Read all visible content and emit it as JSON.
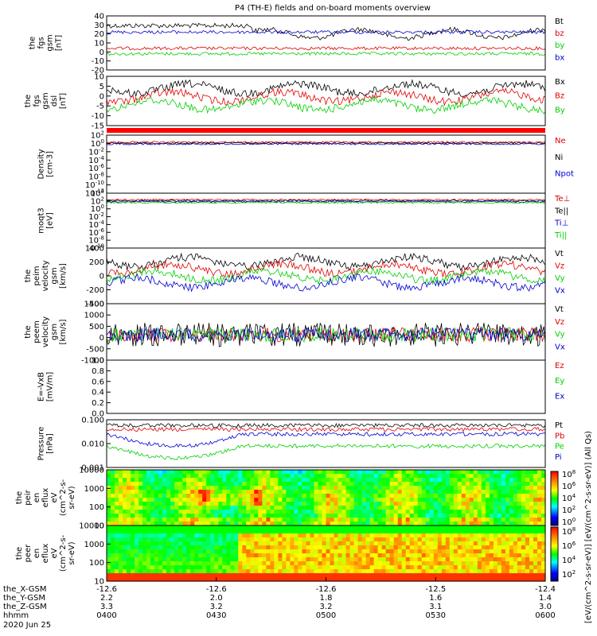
{
  "title": "P4 (TH-E) fields and on-board moments overview",
  "colors": {
    "black": "#000000",
    "red": "#e00000",
    "green": "#00d000",
    "blue": "#0000d0"
  },
  "x_axis": {
    "ticks": [
      "0400",
      "0430",
      "0500",
      "0530",
      "0600"
    ],
    "rows": [
      {
        "label": "the_X-GSM",
        "values": [
          "-12.6",
          "-12.6",
          "-12.6",
          "-12.5",
          "-12.4"
        ]
      },
      {
        "label": "the_Y-GSM",
        "values": [
          "2.2",
          "2.0",
          "1.8",
          "1.6",
          "1.4"
        ]
      },
      {
        "label": "the_Z-GSM",
        "values": [
          "3.3",
          "3.2",
          "3.2",
          "3.1",
          "3.0"
        ]
      },
      {
        "label": "hhmm",
        "values": [
          "0400",
          "0430",
          "0500",
          "0530",
          "0600"
        ]
      }
    ],
    "date": "2020 Jun 25"
  },
  "colorbar": {
    "ticks": [
      "10^8",
      "10^6",
      "10^4",
      "10^2",
      "10^0"
    ],
    "label": "[eV/(cm^2-s-sr-eV)] [eV/(cm^2-s-sr-eV)] (All Qs)",
    "ticks2": [
      "10^8",
      "10^6",
      "10^4",
      "10^2"
    ]
  },
  "chart_data": [
    {
      "id": "fgs_gsm",
      "type": "line",
      "ylabel": [
        "the",
        "fgs",
        "gsm",
        "[nT]"
      ],
      "ylim": [
        -20,
        40
      ],
      "yticks": [
        "40",
        "30",
        "20",
        "10",
        "0",
        "-10",
        "-20"
      ],
      "series": [
        {
          "name": "Bt",
          "color": "black"
        },
        {
          "name": "bz",
          "color": "red"
        },
        {
          "name": "by",
          "color": "green"
        },
        {
          "name": "bx",
          "color": "blue"
        }
      ]
    },
    {
      "id": "fgs_dsl",
      "type": "line",
      "ylabel": [
        "the",
        "fgs",
        "gsm",
        "dsl",
        "[nT]"
      ],
      "ylim": [
        -18,
        12
      ],
      "yticks": [
        "10",
        "5",
        "0",
        "-5",
        "-10",
        "-15"
      ],
      "series": [
        {
          "name": "Bx",
          "color": "black"
        },
        {
          "name": "Bz",
          "color": "red"
        },
        {
          "name": "By",
          "color": "green"
        }
      ]
    },
    {
      "id": "density",
      "type": "line",
      "ylabel": [
        "Density",
        "[cm-3]"
      ],
      "yscale": "log",
      "yticks": [
        "10^2",
        "10^0",
        "10^-2",
        "10^-4",
        "10^-6",
        "10^-8",
        "10^-10",
        "10^-12"
      ],
      "series": [
        {
          "name": "Ne",
          "color": "red"
        },
        {
          "name": "Ni",
          "color": "black"
        },
        {
          "name": "Npot",
          "color": "blue"
        }
      ]
    },
    {
      "id": "temperature",
      "type": "line",
      "ylabel": [
        "moqt3",
        "[eV]"
      ],
      "yscale": "log",
      "yticks": [
        "10^4",
        "10^2",
        "10^0",
        "10^-2",
        "10^-4",
        "10^-6",
        "10^-8",
        "10^-10"
      ],
      "series": [
        {
          "name": "Te⊥",
          "color": "red"
        },
        {
          "name": "Te||",
          "color": "black"
        },
        {
          "name": "Ti⊥",
          "color": "blue"
        },
        {
          "name": "Ti||",
          "color": "green"
        }
      ]
    },
    {
      "id": "peim_velocity",
      "type": "line",
      "ylabel": [
        "the",
        "peim",
        "velocity",
        "gsm",
        "[km/s]"
      ],
      "ylim": [
        -400,
        500
      ],
      "yticks": [
        "400",
        "200",
        "0",
        "-200",
        "-400"
      ],
      "series": [
        {
          "name": "Vt",
          "color": "black"
        },
        {
          "name": "Vz",
          "color": "red"
        },
        {
          "name": "Vy",
          "color": "green"
        },
        {
          "name": "Vx",
          "color": "blue"
        }
      ]
    },
    {
      "id": "peem_velocity",
      "type": "line",
      "ylabel": [
        "the",
        "peem",
        "velocity",
        "gsm",
        "[km/s]"
      ],
      "ylim": [
        -1300,
        1600
      ],
      "yticks": [
        "1500",
        "1000",
        "500",
        "0",
        "-500",
        "-1000"
      ],
      "series": [
        {
          "name": "Vt",
          "color": "black"
        },
        {
          "name": "Vz",
          "color": "red"
        },
        {
          "name": "Vy",
          "color": "green"
        },
        {
          "name": "Vx",
          "color": "blue"
        }
      ]
    },
    {
      "id": "efield",
      "type": "line",
      "ylabel": [
        "E=-VxB",
        "[mV/m]"
      ],
      "ylim": [
        0,
        1
      ],
      "yticks": [
        "1.0",
        "0.8",
        "0.6",
        "0.4",
        "0.2",
        "0.0"
      ],
      "series": [
        {
          "name": "Ez",
          "color": "red"
        },
        {
          "name": "Ey",
          "color": "green"
        },
        {
          "name": "Ex",
          "color": "blue"
        }
      ]
    },
    {
      "id": "pressure",
      "type": "line",
      "ylabel": [
        "Pressure",
        "[nPa]"
      ],
      "yscale": "log",
      "yticks": [
        "0.100",
        "0.010",
        "0.001"
      ],
      "series": [
        {
          "name": "Pt",
          "color": "black"
        },
        {
          "name": "Pb",
          "color": "red"
        },
        {
          "name": "Pe",
          "color": "green"
        },
        {
          "name": "Pi",
          "color": "blue"
        }
      ]
    },
    {
      "id": "peir_spec",
      "type": "heatmap",
      "ylabel": [
        "the",
        "peir",
        "en",
        "eflux",
        "eV",
        "(cm^2-s-",
        "sr-eV)"
      ],
      "yscale": "log",
      "yticks": [
        "10000",
        "1000",
        "100",
        "10"
      ]
    },
    {
      "id": "peer_spec",
      "type": "heatmap",
      "ylabel": [
        "the",
        "peer",
        "en",
        "eflux",
        "eV",
        "(cm^2-s-",
        "sr-eV)"
      ],
      "yscale": "log",
      "yticks": [
        "10000",
        "1000",
        "100",
        "10"
      ]
    }
  ]
}
